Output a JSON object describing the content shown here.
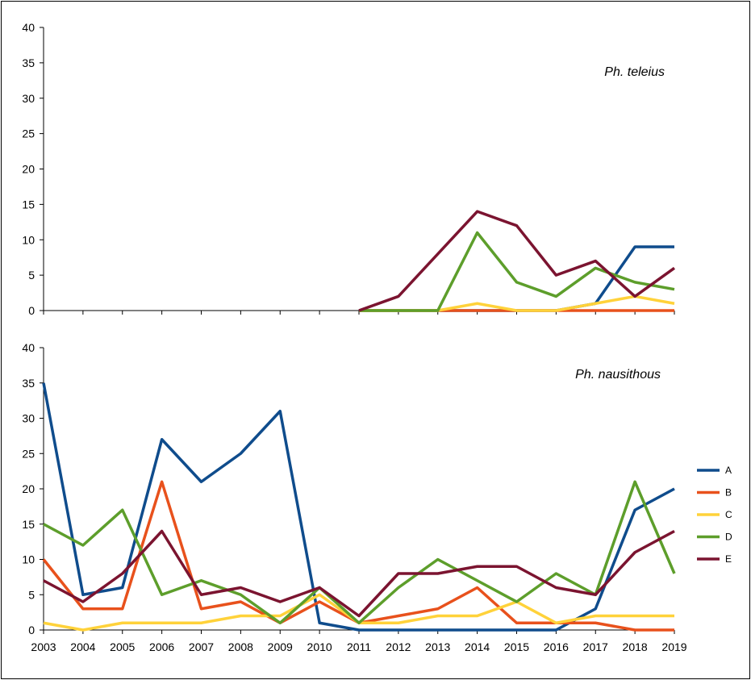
{
  "chart_data": [
    {
      "type": "line",
      "title": "Ph. teleius",
      "xlabel": "",
      "ylabel": "",
      "x": [
        2003,
        2004,
        2005,
        2006,
        2007,
        2008,
        2009,
        2010,
        2011,
        2012,
        2013,
        2014,
        2015,
        2016,
        2017,
        2018,
        2019
      ],
      "ylim": [
        0,
        40
      ],
      "yticks": [
        0,
        5,
        10,
        15,
        20,
        25,
        30,
        35,
        40
      ],
      "grid": false,
      "series": [
        {
          "name": "A",
          "color": "#0f4c8c",
          "values": [
            null,
            null,
            null,
            null,
            null,
            null,
            null,
            null,
            0,
            0,
            0,
            0,
            0,
            0,
            1,
            9,
            9
          ]
        },
        {
          "name": "B",
          "color": "#e8511c",
          "values": [
            null,
            null,
            null,
            null,
            null,
            null,
            null,
            null,
            0,
            0,
            0,
            0,
            0,
            0,
            0,
            0,
            0
          ]
        },
        {
          "name": "C",
          "color": "#ffd23a",
          "values": [
            null,
            null,
            null,
            null,
            null,
            null,
            null,
            null,
            0,
            0,
            0,
            1,
            0,
            0,
            1,
            2,
            1
          ]
        },
        {
          "name": "D",
          "color": "#5d9e2b",
          "values": [
            null,
            null,
            null,
            null,
            null,
            null,
            null,
            null,
            0,
            0,
            0,
            11,
            4,
            2,
            6,
            4,
            3
          ]
        },
        {
          "name": "E",
          "color": "#7b1430",
          "values": [
            null,
            null,
            null,
            null,
            null,
            null,
            null,
            null,
            0,
            2,
            8,
            14,
            12,
            5,
            7,
            2,
            6
          ]
        }
      ]
    },
    {
      "type": "line",
      "title": "Ph. nausithous",
      "xlabel": "",
      "ylabel": "",
      "x": [
        2003,
        2004,
        2005,
        2006,
        2007,
        2008,
        2009,
        2010,
        2011,
        2012,
        2013,
        2014,
        2015,
        2016,
        2017,
        2018,
        2019
      ],
      "ylim": [
        0,
        40
      ],
      "yticks": [
        0,
        5,
        10,
        15,
        20,
        25,
        30,
        35,
        40
      ],
      "grid": false,
      "legend_position": "right",
      "series": [
        {
          "name": "A",
          "color": "#0f4c8c",
          "values": [
            35,
            5,
            6,
            27,
            21,
            25,
            31,
            1,
            0,
            0,
            0,
            0,
            0,
            0,
            3,
            17,
            20
          ]
        },
        {
          "name": "B",
          "color": "#e8511c",
          "values": [
            10,
            3,
            3,
            21,
            3,
            4,
            1,
            4,
            1,
            2,
            3,
            6,
            1,
            1,
            1,
            0,
            0
          ]
        },
        {
          "name": "C",
          "color": "#ffd23a",
          "values": [
            1,
            0,
            1,
            1,
            1,
            2,
            2,
            5,
            1,
            1,
            2,
            2,
            4,
            1,
            2,
            2,
            2
          ]
        },
        {
          "name": "D",
          "color": "#5d9e2b",
          "values": [
            15,
            12,
            17,
            5,
            7,
            5,
            1,
            6,
            1,
            6,
            10,
            7,
            4,
            8,
            5,
            21,
            8
          ]
        },
        {
          "name": "E",
          "color": "#7b1430",
          "values": [
            7,
            4,
            8,
            14,
            5,
            6,
            4,
            6,
            2,
            8,
            8,
            9,
            9,
            6,
            5,
            11,
            14
          ]
        }
      ]
    }
  ]
}
